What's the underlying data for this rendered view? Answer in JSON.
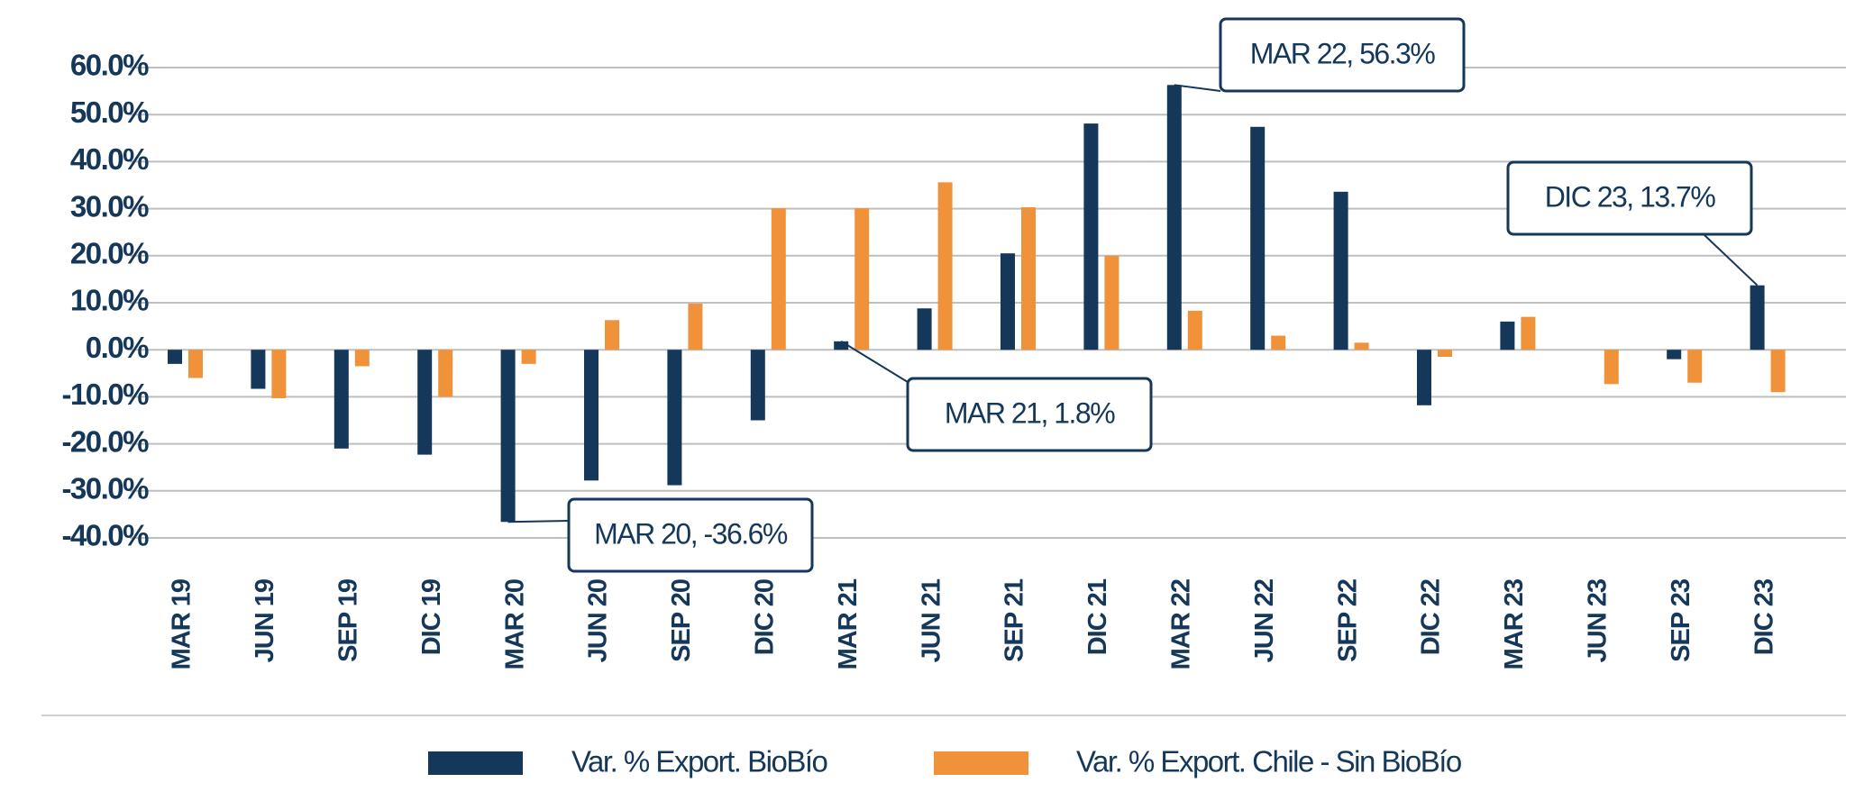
{
  "chart_data": {
    "type": "bar",
    "categories": [
      "MAR 19",
      "JUN 19",
      "SEP 19",
      "DIC 19",
      "MAR 20",
      "JUN 20",
      "SEP 20",
      "DIC 20",
      "MAR 21",
      "JUN 21",
      "SEP 21",
      "DIC 21",
      "MAR 22",
      "JUN 22",
      "SEP 22",
      "DIC 22",
      "MAR 23",
      "JUN 23",
      "SEP 23",
      "DIC 23"
    ],
    "series": [
      {
        "name": "Var. % Export. BioBío",
        "color": "#14375a",
        "values": [
          -3.0,
          -8.3,
          -21.0,
          -22.3,
          -36.6,
          -27.8,
          -28.8,
          -15.0,
          1.8,
          8.8,
          20.5,
          48.1,
          56.3,
          47.4,
          33.6,
          -11.8,
          6.0,
          0,
          -2.0,
          13.7
        ]
      },
      {
        "name": "Var. % Export. Chile - Sin BioBío",
        "color": "#f0923a",
        "values": [
          -6.0,
          -10.3,
          -3.5,
          -10.0,
          -3.0,
          6.3,
          9.8,
          30.1,
          30.1,
          35.6,
          30.3,
          20.0,
          8.3,
          3.0,
          1.5,
          -1.5,
          7.0,
          -7.3,
          -7.0,
          -9.0
        ]
      }
    ],
    "ylim": [
      -40,
      60
    ],
    "yticks": [
      {
        "value": -40,
        "label": "-40.0%"
      },
      {
        "value": -30,
        "label": "-30.0%"
      },
      {
        "value": -20,
        "label": "-20.0%"
      },
      {
        "value": -10,
        "label": "-10.0%"
      },
      {
        "value": 0,
        "label": "0.0%"
      },
      {
        "value": 10,
        "label": "10.0%"
      },
      {
        "value": 20,
        "label": "20.0%"
      },
      {
        "value": 30,
        "label": "30.0%"
      },
      {
        "value": 40,
        "label": "40.0%"
      },
      {
        "value": 50,
        "label": "50.0%"
      },
      {
        "value": 60,
        "label": "60.0%"
      }
    ],
    "grid": true,
    "legend": "bottom",
    "annotations": [
      "MAR 20, -36.6%",
      "MAR 21, 1.8%",
      "MAR 22, 56.3%",
      "DIC 23, 13.7%"
    ]
  }
}
